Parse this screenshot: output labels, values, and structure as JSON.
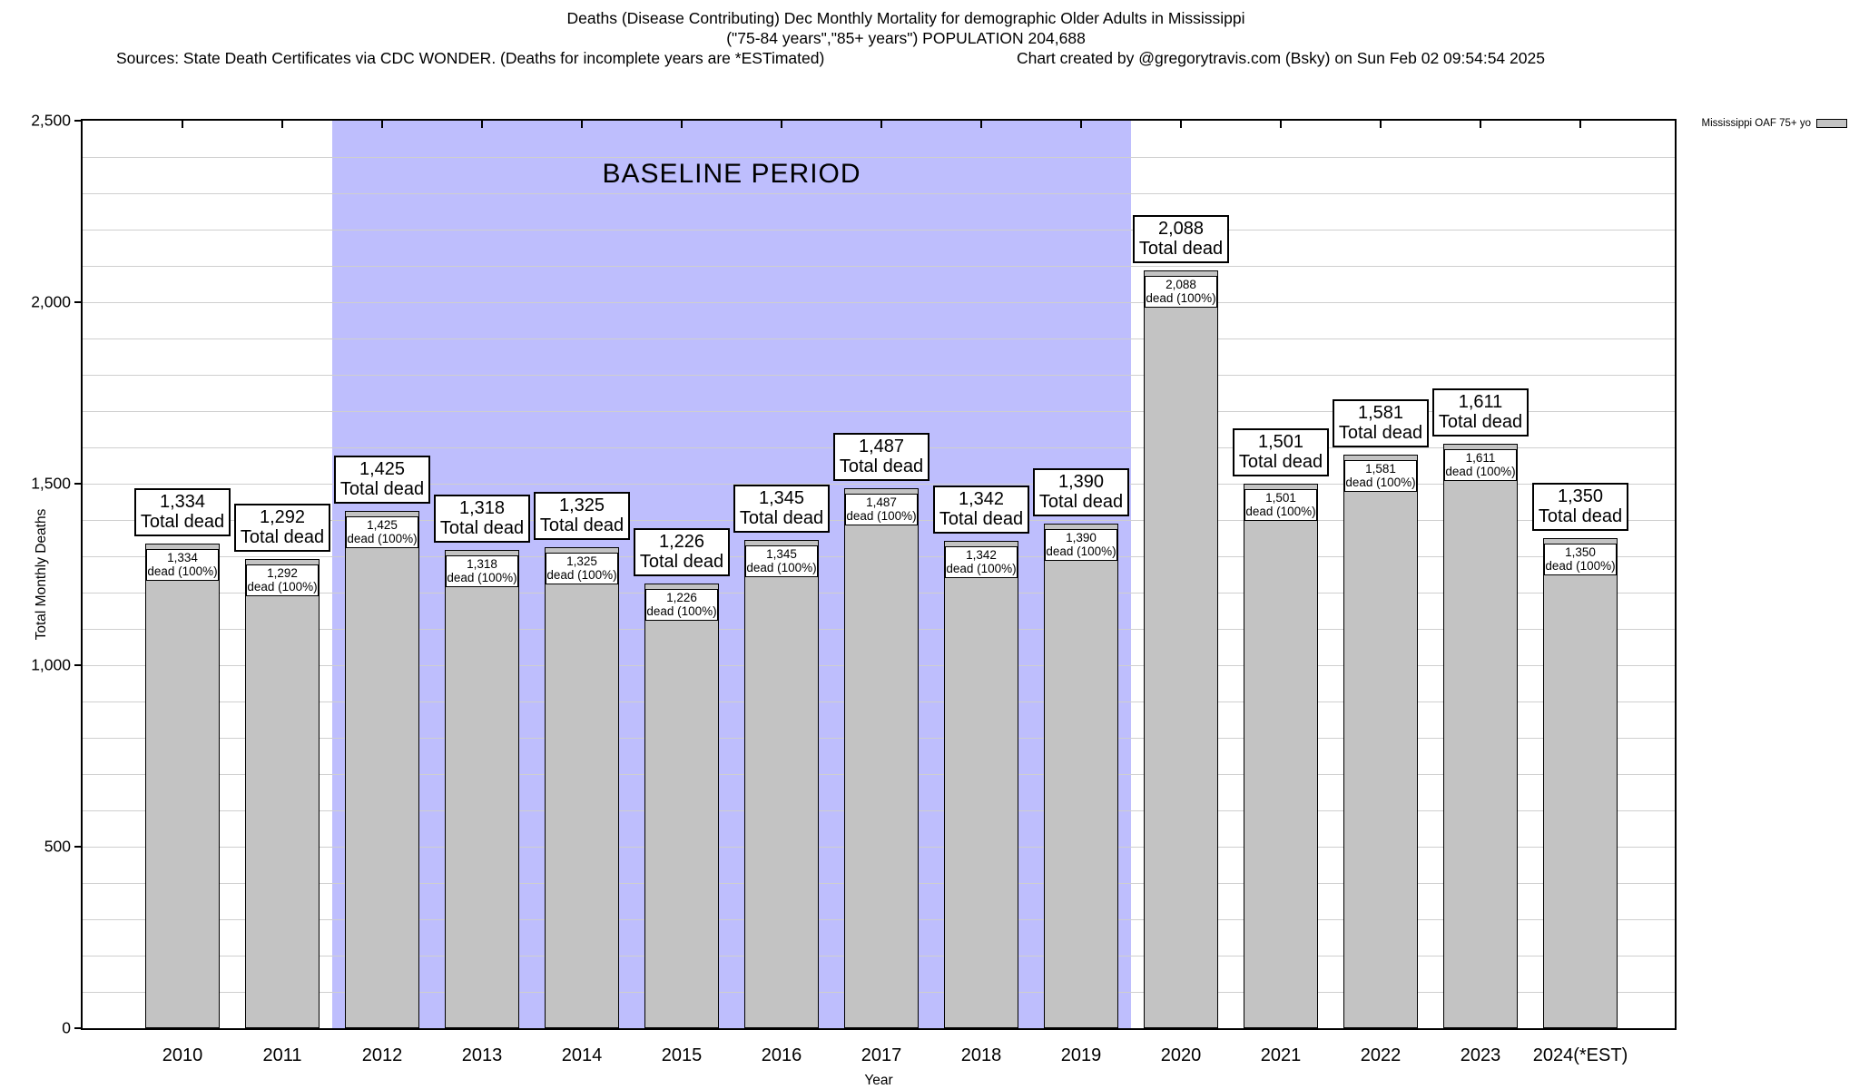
{
  "header": {
    "title_line1": "Deaths (Disease Contributing) Dec Monthly Mortality for demographic Older Adults in Mississippi",
    "title_line2": "(\"75-84 years\",\"85+ years\") POPULATION 204,688",
    "sources": "Sources: State Death Certificates via CDC WONDER. (Deaths for incomplete years are *ESTimated)",
    "credit": "Chart created by @gregorytravis.com (Bsky) on Sun Feb 02 09:54:54 2025"
  },
  "legend": {
    "label": "Mississippi OAF 75+ yo",
    "swatch_color": "#c3c3c3"
  },
  "chart_data": {
    "type": "bar",
    "title": "Deaths (Disease Contributing) Dec Monthly Mortality for demographic Older Adults in Mississippi",
    "xlabel": "Year",
    "ylabel": "Total Monthly Deaths",
    "ylim": [
      0,
      2500
    ],
    "ytick_major": 500,
    "ytick_minor": 100,
    "grid": true,
    "legend_position": "top-right",
    "bar_color": "#c3c3c3",
    "ytick_labels": [
      "0",
      "500",
      "1,000",
      "1,500",
      "2,000",
      "2,500"
    ],
    "categories": [
      "2010",
      "2011",
      "2012",
      "2013",
      "2014",
      "2015",
      "2016",
      "2017",
      "2018",
      "2019",
      "2020",
      "2021",
      "2022",
      "2023",
      "2024(*EST)"
    ],
    "values": [
      1334,
      1292,
      1425,
      1318,
      1325,
      1226,
      1345,
      1487,
      1342,
      1390,
      2088,
      1501,
      1581,
      1611,
      1350
    ],
    "value_labels": [
      "1,334",
      "1,292",
      "1,425",
      "1,318",
      "1,325",
      "1,226",
      "1,345",
      "1,487",
      "1,342",
      "1,390",
      "2,088",
      "1,501",
      "1,581",
      "1,611",
      "1,350"
    ],
    "outer_caption": "Total dead",
    "inner_caption": "dead (100%)",
    "baseline": {
      "label": "BASELINE PERIOD",
      "start_index": 2,
      "end_index": 9,
      "color": "rgba(165,165,252,0.72)"
    }
  }
}
